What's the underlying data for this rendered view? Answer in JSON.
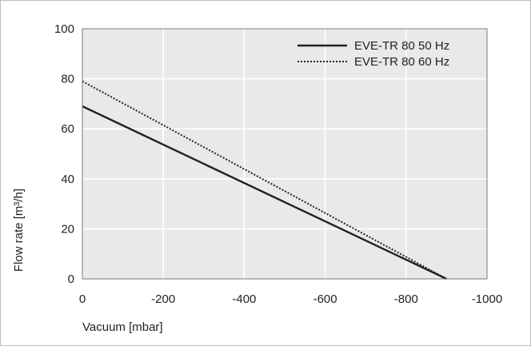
{
  "chart_data": {
    "type": "line",
    "title": "",
    "xlabel": "Vacuum [mbar]",
    "ylabel": "Flow rate [m³/h]",
    "xlim": [
      0,
      -1000
    ],
    "ylim": [
      0,
      100
    ],
    "x_ticks": [
      0,
      -200,
      -400,
      -600,
      -800,
      -1000
    ],
    "x_tick_labels": [
      "0",
      "-200",
      "-400",
      "-600",
      "-800",
      "-1000"
    ],
    "y_ticks": [
      0,
      20,
      40,
      60,
      80,
      100
    ],
    "y_tick_labels": [
      "0",
      "20",
      "40",
      "60",
      "80",
      "100"
    ],
    "grid": true,
    "legend_position": "top-right",
    "series": [
      {
        "name": "EVE-TR 80 50 Hz",
        "style": "solid",
        "color": "#222222",
        "x": [
          0,
          -900
        ],
        "y": [
          69,
          0
        ]
      },
      {
        "name": "EVE-TR 80 60 Hz",
        "style": "dotted",
        "color": "#222222",
        "x": [
          0,
          -900
        ],
        "y": [
          79,
          0
        ]
      }
    ]
  },
  "colors": {
    "plot_background": "#e9e9e9",
    "grid": "#ffffff",
    "frame": "#7a7a7a",
    "outer_border": "#bdbdbd"
  }
}
